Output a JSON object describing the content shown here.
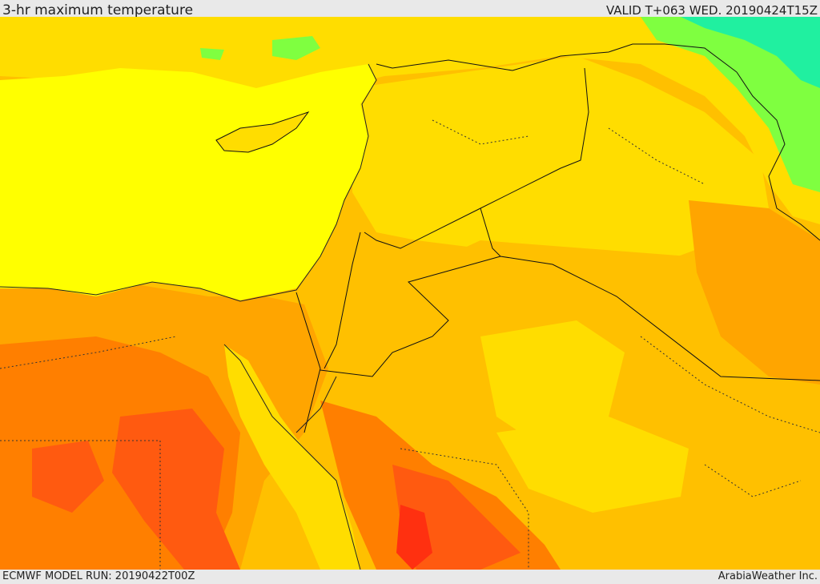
{
  "header": {
    "title": "3-hr maximum temperature",
    "valid": "VALID T+063 WED. 20190424T15Z"
  },
  "footer": {
    "model_run": "ECMWF MODEL RUN: 20190422T00Z",
    "credit": "ArabiaWeather Inc."
  },
  "map": {
    "colors": {
      "sea": "#ffff00",
      "warm_yellow": "#ffdd00",
      "light_orange": "#ffc000",
      "orange": "#ffa500",
      "dark_orange": "#ff7f00",
      "red_orange": "#ff5a10",
      "red": "#ff3010",
      "cool_green": "#7fff40",
      "cold_cyan": "#20f0a0",
      "border_line": "#111111"
    }
  }
}
